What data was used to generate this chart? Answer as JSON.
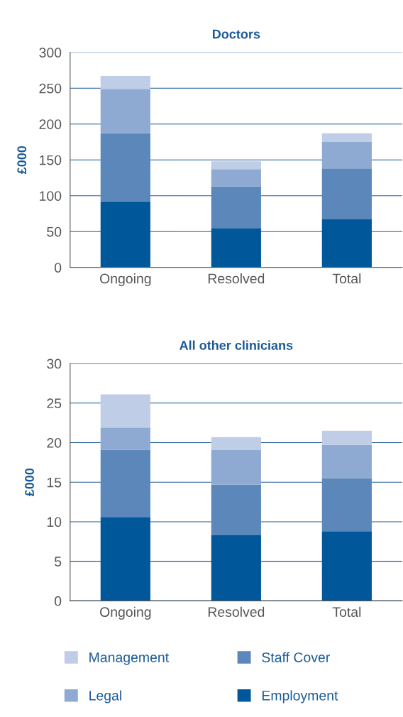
{
  "chart_data": [
    {
      "type": "bar",
      "title": "Doctors",
      "ylabel": "£000",
      "categories": [
        "Ongoing",
        "Resolved",
        "Total"
      ],
      "stacked": true,
      "ylim": [
        0,
        300
      ],
      "yticks": [
        0,
        50,
        100,
        150,
        200,
        250,
        300
      ],
      "grid": "y",
      "series": [
        {
          "color": "#00579a",
          "values": [
            92,
            55,
            67
          ]
        },
        {
          "color": "#5b87bb",
          "values": [
            95,
            58,
            71
          ]
        },
        {
          "color": "#8eaad2",
          "values": [
            62,
            24,
            37
          ]
        },
        {
          "color": "#bfcde6",
          "values": [
            18,
            11,
            12
          ]
        }
      ]
    },
    {
      "type": "bar",
      "title": "All other clinicians",
      "ylabel": "£000",
      "categories": [
        "Ongoing",
        "Resolved",
        "Total"
      ],
      "stacked": true,
      "ylim": [
        0,
        30
      ],
      "yticks": [
        0,
        5,
        10,
        15,
        20,
        25,
        30
      ],
      "grid": "y",
      "legend": "bottom",
      "series": [
        {
          "name": "Employment",
          "color": "#00579a",
          "values": [
            10.6,
            8.3,
            8.8
          ]
        },
        {
          "name": "Staff Cover",
          "color": "#5b87bb",
          "values": [
            8.5,
            6.4,
            6.7
          ]
        },
        {
          "name": "Legal",
          "color": "#8eaad2",
          "values": [
            2.8,
            4.4,
            4.2
          ]
        },
        {
          "name": "Management",
          "color": "#bfcde6",
          "values": [
            4.2,
            1.6,
            1.8
          ]
        }
      ]
    }
  ]
}
